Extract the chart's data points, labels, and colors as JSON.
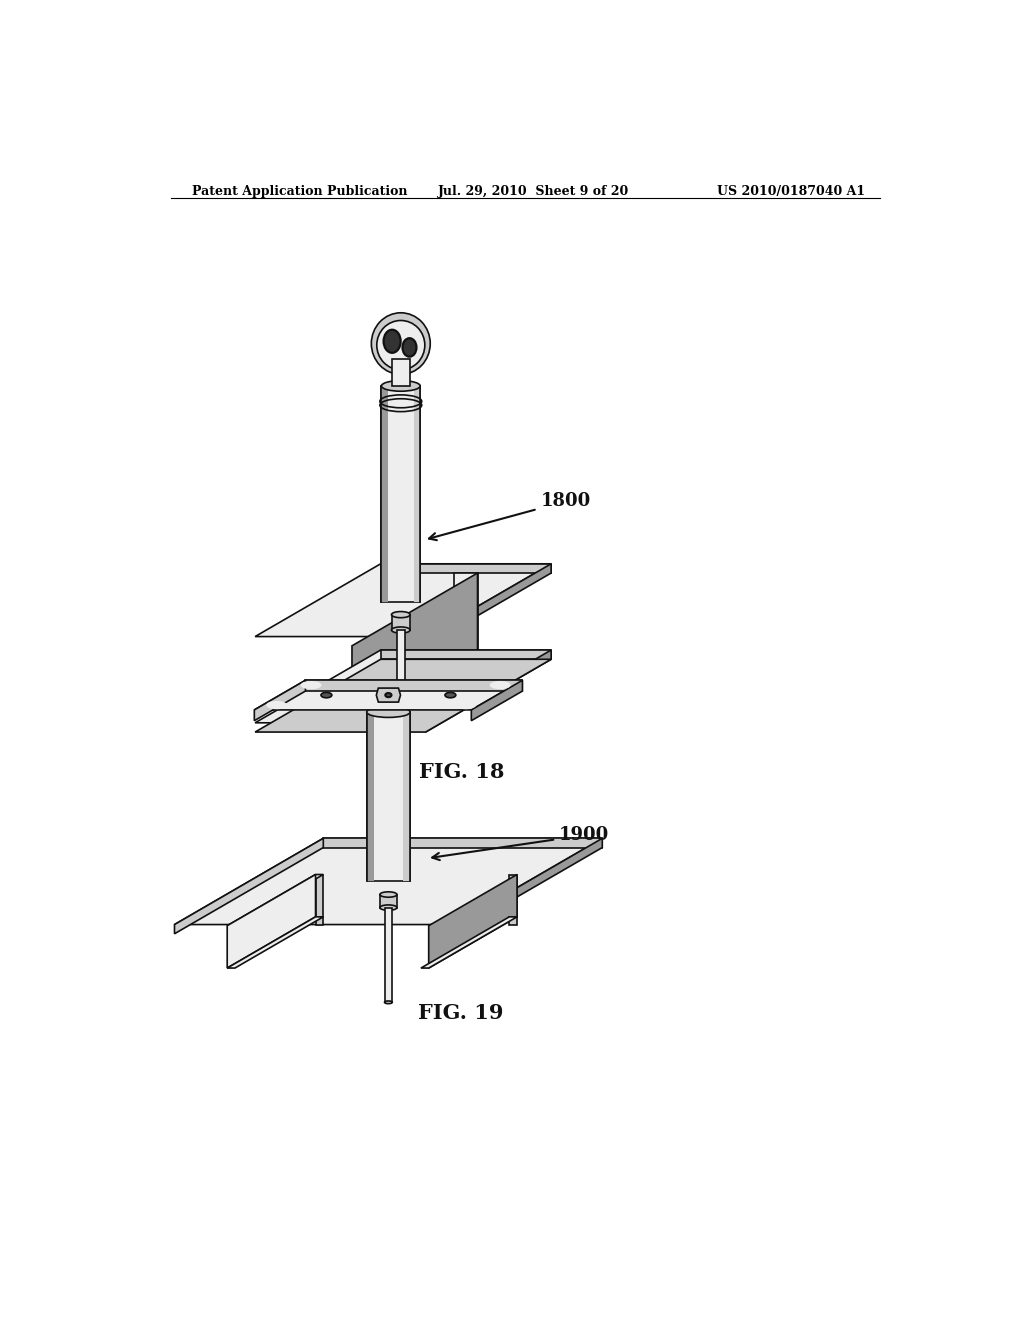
{
  "background_color": "#ffffff",
  "header_left": "Patent Application Publication",
  "header_mid": "Jul. 29, 2010  Sheet 9 of 20",
  "header_right": "US 2010/0187040 A1",
  "fig18_label": "FIG. 18",
  "fig18_number": "1800",
  "fig19_label": "FIG. 19",
  "fig19_number": "1900",
  "line_color": "#000000",
  "fill_white": "#ffffff",
  "fill_light": "#eeeeee",
  "fill_mid": "#cccccc",
  "fill_dark": "#999999",
  "fill_vdark": "#555555"
}
